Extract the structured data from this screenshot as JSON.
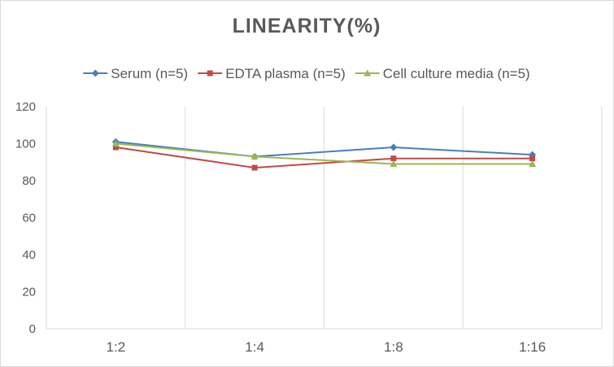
{
  "chart_data": {
    "type": "line",
    "title": "LINEARITY(%)",
    "xlabel": "",
    "ylabel": "",
    "categories": [
      "1:2",
      "1:4",
      "1:8",
      "1:16"
    ],
    "ylim": [
      0,
      120
    ],
    "yticks": [
      0,
      20,
      40,
      60,
      80,
      100,
      120
    ],
    "grid": "vertical",
    "legend_position": "top",
    "series": [
      {
        "name": "Serum (n=5)",
        "values": [
          101,
          93,
          98,
          94
        ],
        "color": "#4a7ebb",
        "marker": "diamond"
      },
      {
        "name": "EDTA plasma (n=5)",
        "values": [
          98,
          87,
          92,
          92
        ],
        "color": "#be4b48",
        "marker": "square"
      },
      {
        "name": "Cell culture media (n=5)",
        "values": [
          100,
          93,
          89,
          89
        ],
        "color": "#98b954",
        "marker": "triangle"
      }
    ]
  }
}
